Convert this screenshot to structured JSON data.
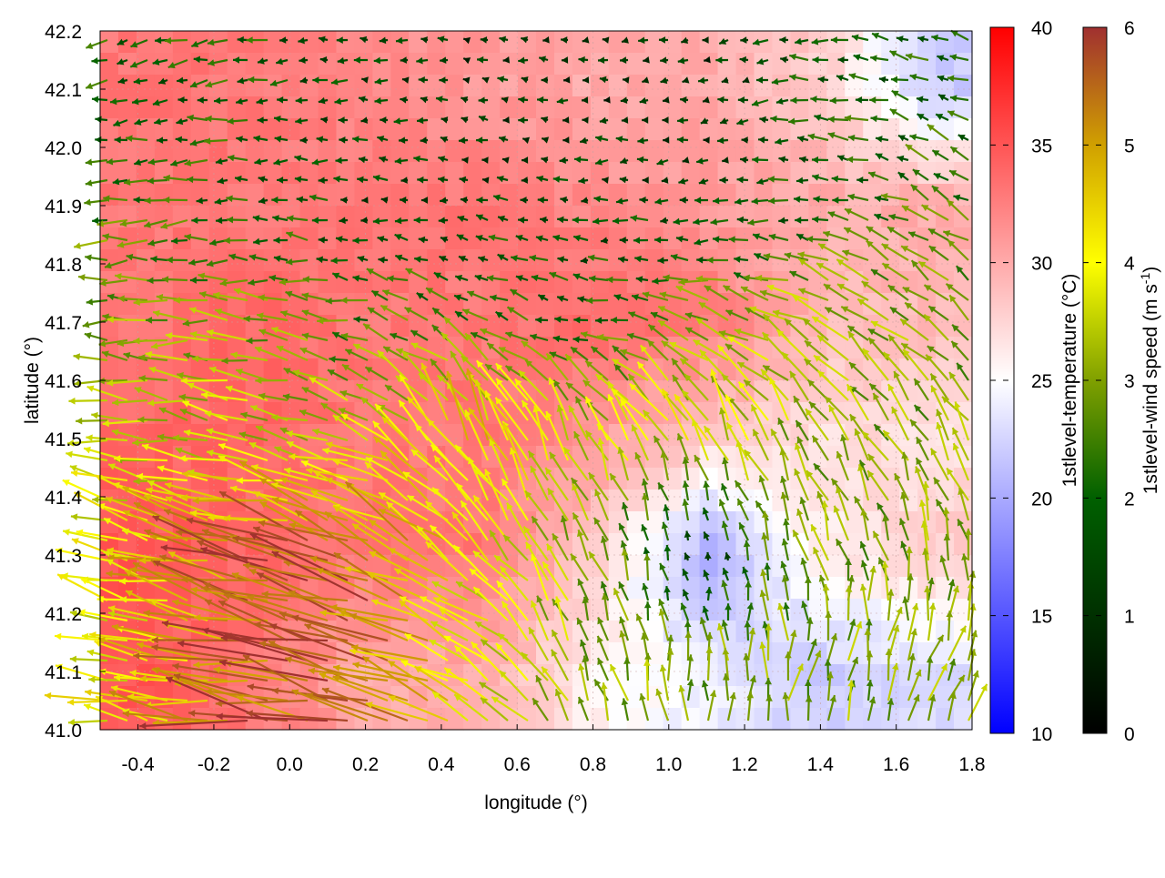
{
  "chart_data": {
    "type": "heatmap",
    "overlay": "vector-field",
    "xlabel": "longitude (°)",
    "ylabel": "latitude (°)",
    "xlim": [
      -0.5,
      1.8
    ],
    "ylim": [
      41.0,
      42.2
    ],
    "xticks": [
      "-0.4",
      "-0.2",
      "0.0",
      "0.2",
      "0.4",
      "0.6",
      "0.8",
      "1.0",
      "1.2",
      "1.4",
      "1.6",
      "1.8"
    ],
    "yticks": [
      "41.0",
      "41.1",
      "41.2",
      "41.3",
      "41.4",
      "41.5",
      "41.6",
      "41.7",
      "41.8",
      "41.9",
      "42.0",
      "42.1",
      "42.2"
    ],
    "grid": true,
    "temperature_colorbar": {
      "label": "1stlevel-temperature (°C)",
      "range": [
        10,
        40
      ],
      "ticks": [
        "10",
        "15",
        "20",
        "25",
        "30",
        "35",
        "40"
      ],
      "colors": {
        "low": "#0000ff",
        "mid": "#ffffff",
        "high": "#ff0000"
      }
    },
    "wind_colorbar": {
      "label_main": "1stlevel-wind speed (m s",
      "label_sup": "-1",
      "label_end": ")",
      "range": [
        0,
        6
      ],
      "ticks": [
        "0",
        "1",
        "2",
        "3",
        "4",
        "5",
        "6"
      ],
      "stops": [
        "#000000",
        "#003000",
        "#006000",
        "#80a000",
        "#ffff00",
        "#d0a000",
        "#a03030"
      ]
    },
    "grid_lon": [
      -0.4,
      -0.1,
      0.2,
      0.5,
      0.8,
      1.1,
      1.4,
      1.7
    ],
    "grid_lat": [
      42.1,
      41.9,
      41.7,
      41.5,
      41.3,
      41.1
    ],
    "temperature": [
      [
        33,
        33,
        32,
        31,
        30,
        30,
        28,
        22
      ],
      [
        33,
        33,
        33,
        33,
        32,
        31,
        30,
        30
      ],
      [
        33,
        34,
        33,
        33,
        34,
        33,
        29,
        29
      ],
      [
        34,
        34,
        33,
        33,
        31,
        28,
        27,
        27
      ],
      [
        35,
        34,
        33,
        33,
        28,
        20,
        26,
        28
      ],
      [
        35,
        33,
        30,
        30,
        26,
        24,
        22,
        23
      ]
    ],
    "wind_speed": [
      [
        2,
        2,
        1.5,
        1,
        1,
        1,
        2,
        2
      ],
      [
        2.5,
        2,
        1.5,
        1.5,
        1.5,
        1.5,
        2,
        2.5
      ],
      [
        3,
        3,
        2.5,
        2.5,
        2,
        3,
        3.5,
        3
      ],
      [
        3.5,
        3.5,
        3.5,
        4.5,
        3.5,
        4,
        3,
        3
      ],
      [
        4,
        5.5,
        5.5,
        4,
        3,
        1.5,
        3,
        3
      ],
      [
        4,
        5.5,
        5.5,
        4,
        3,
        3,
        3,
        3
      ]
    ],
    "wind_direction_deg": [
      [
        190,
        185,
        180,
        170,
        180,
        190,
        180,
        160
      ],
      [
        185,
        180,
        175,
        170,
        180,
        190,
        170,
        150
      ],
      [
        180,
        175,
        165,
        150,
        170,
        160,
        150,
        140
      ],
      [
        170,
        170,
        160,
        110,
        120,
        115,
        120,
        120
      ],
      [
        165,
        165,
        160,
        140,
        110,
        100,
        110,
        100
      ],
      [
        170,
        170,
        165,
        150,
        110,
        90,
        80,
        70
      ]
    ]
  }
}
